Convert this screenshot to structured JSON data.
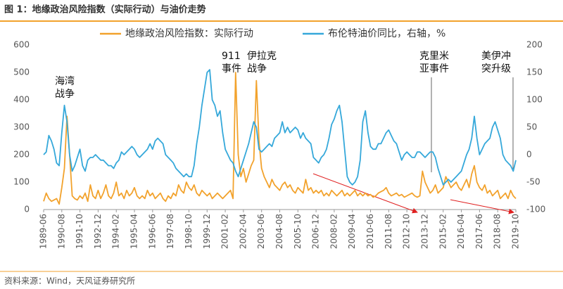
{
  "header": {
    "title": "图 1：地缘政治风险指数（实际行动）与油价走势"
  },
  "chart_data": {
    "type": "line",
    "categories": [
      "1989-06",
      null,
      null,
      null,
      null,
      null,
      null,
      "1990-08",
      null,
      null,
      null,
      null,
      null,
      null,
      "1991-10",
      null,
      null,
      null,
      null,
      null,
      null,
      "1992-12",
      null,
      null,
      null,
      null,
      null,
      null,
      "1994-02",
      null,
      null,
      null,
      null,
      null,
      null,
      "1995-04",
      null,
      null,
      null,
      null,
      null,
      null,
      "1996-06",
      null,
      null,
      null,
      null,
      null,
      null,
      "1997-08",
      null,
      null,
      null,
      null,
      null,
      null,
      "1998-10",
      null,
      null,
      null,
      null,
      null,
      null,
      "1999-12",
      null,
      null,
      null,
      null,
      null,
      null,
      "2001-02",
      null,
      null,
      null,
      null,
      null,
      null,
      "2002-04",
      null,
      null,
      null,
      null,
      null,
      null,
      "2003-06",
      null,
      null,
      null,
      null,
      null,
      null,
      "2004-08",
      null,
      null,
      null,
      null,
      null,
      null,
      "2005-10",
      null,
      null,
      null,
      null,
      null,
      null,
      "2006-12",
      null,
      null,
      null,
      null,
      null,
      null,
      "2008-02",
      null,
      null,
      null,
      null,
      null,
      null,
      "2009-04",
      null,
      null,
      null,
      null,
      null,
      null,
      "2010-06",
      null,
      null,
      null,
      null,
      null,
      null,
      "2011-08",
      null,
      null,
      null,
      null,
      null,
      null,
      "2012-10",
      null,
      null,
      null,
      null,
      null,
      null,
      "2013-12",
      null,
      null,
      null,
      null,
      null,
      null,
      "2015-02",
      null,
      null,
      null,
      null,
      null,
      null,
      "2016-04",
      null,
      null,
      null,
      null,
      null,
      null,
      "2017-06",
      null,
      null,
      null,
      null,
      null,
      null,
      "2018-08",
      null,
      null,
      null,
      null,
      null,
      null,
      "2019-10"
    ],
    "series": [
      {
        "name": "地缘政治风险指数：实际行动",
        "color": "#f2a22c",
        "axis": "y",
        "values": [
          30,
          60,
          40,
          30,
          35,
          40,
          20,
          80,
          150,
          340,
          200,
          50,
          40,
          35,
          50,
          40,
          60,
          30,
          90,
          50,
          40,
          70,
          40,
          60,
          90,
          50,
          40,
          60,
          100,
          50,
          60,
          40,
          70,
          50,
          60,
          80,
          50,
          40,
          50,
          40,
          70,
          50,
          60,
          40,
          50,
          60,
          40,
          30,
          50,
          40,
          60,
          50,
          90,
          70,
          60,
          100,
          80,
          70,
          90,
          60,
          50,
          70,
          60,
          50,
          60,
          40,
          50,
          60,
          50,
          40,
          50,
          60,
          70,
          40,
          500,
          200,
          120,
          150,
          100,
          130,
          160,
          180,
          470,
          250,
          150,
          120,
          100,
          80,
          110,
          90,
          80,
          70,
          90,
          100,
          80,
          90,
          70,
          60,
          80,
          70,
          60,
          110,
          70,
          80,
          60,
          70,
          60,
          70,
          50,
          60,
          50,
          70,
          60,
          50,
          60,
          70,
          50,
          60,
          50,
          60,
          70,
          50,
          60,
          50,
          60,
          50,
          55,
          45,
          50,
          60,
          65,
          70,
          80,
          60,
          50,
          55,
          60,
          50,
          55,
          45,
          50,
          55,
          60,
          50,
          45,
          50,
          140,
          100,
          80,
          60,
          70,
          90,
          60,
          70,
          80,
          120,
          100,
          80,
          90,
          100,
          80,
          70,
          90,
          110,
          80,
          130,
          160,
          100,
          80,
          70,
          90,
          60,
          70,
          50,
          60,
          70,
          40,
          50,
          60,
          40,
          70,
          50,
          40
        ]
      },
      {
        "name": "布伦特油价同比，右轴，%",
        "color": "#35a8da",
        "axis": "y2",
        "values": [
          0,
          5,
          35,
          25,
          10,
          -15,
          -20,
          40,
          90,
          60,
          0,
          -30,
          -20,
          -5,
          10,
          -20,
          -30,
          -10,
          -5,
          -5,
          0,
          -5,
          -10,
          -10,
          -15,
          -20,
          -20,
          -25,
          -15,
          -10,
          5,
          0,
          5,
          10,
          15,
          10,
          0,
          -5,
          0,
          5,
          10,
          20,
          10,
          25,
          30,
          25,
          20,
          0,
          -5,
          -10,
          -15,
          -25,
          -30,
          -35,
          -40,
          -35,
          -40,
          -40,
          -20,
          20,
          50,
          90,
          120,
          150,
          155,
          100,
          90,
          70,
          80,
          40,
          10,
          0,
          -10,
          -15,
          -30,
          -40,
          -25,
          -10,
          5,
          20,
          40,
          60,
          50,
          10,
          5,
          10,
          15,
          20,
          15,
          30,
          35,
          40,
          60,
          40,
          50,
          40,
          45,
          50,
          45,
          30,
          40,
          30,
          25,
          20,
          -5,
          -10,
          -15,
          -5,
          0,
          10,
          30,
          55,
          65,
          80,
          90,
          60,
          10,
          -40,
          -50,
          -55,
          -50,
          -40,
          -10,
          60,
          80,
          40,
          15,
          10,
          10,
          20,
          20,
          30,
          40,
          45,
          35,
          25,
          20,
          5,
          -10,
          0,
          5,
          0,
          -5,
          -5,
          5,
          5,
          0,
          -5,
          0,
          5,
          5,
          -5,
          -25,
          -40,
          -55,
          -50,
          -45,
          -50,
          -45,
          -40,
          -35,
          -30,
          -15,
          0,
          10,
          30,
          70,
          30,
          0,
          10,
          20,
          25,
          30,
          50,
          60,
          45,
          30,
          0,
          -10,
          -15,
          -20,
          -30,
          -10
        ]
      }
    ],
    "ylim": [
      0,
      600
    ],
    "yticks": [
      0,
      100,
      200,
      300,
      400,
      500,
      600
    ],
    "y2lim": [
      -100,
      200
    ],
    "y2ticks": [
      -100,
      -50,
      0,
      50,
      100,
      150,
      200
    ],
    "annotations": [
      {
        "lines": [
          "海湾",
          "战争"
        ]
      },
      {
        "lines": [
          "911",
          "事件"
        ]
      },
      {
        "lines": [
          "伊拉克",
          "战争"
        ]
      },
      {
        "lines": [
          "克里米",
          "亚事件"
        ]
      },
      {
        "lines": [
          "美伊冲",
          "突升级"
        ]
      }
    ]
  },
  "footer": {
    "source": "资料来源：Wind，天风证券研究所"
  }
}
